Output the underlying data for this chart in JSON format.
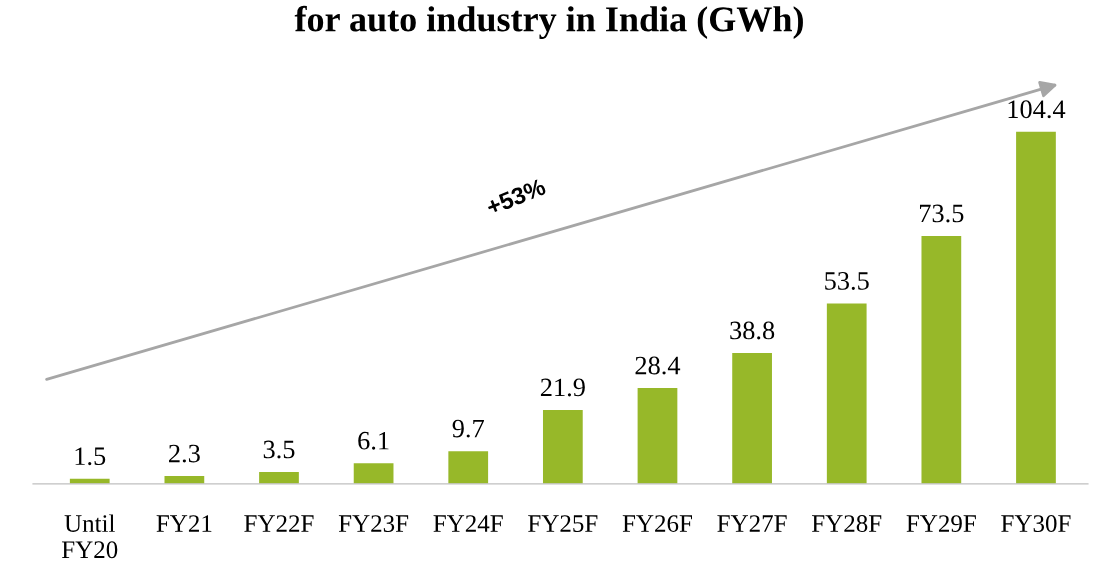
{
  "chart_data": {
    "type": "bar",
    "title": "for auto industry in India (GWh)",
    "categories": [
      "Until\nFY20",
      "FY21",
      "FY22F",
      "FY23F",
      "FY24F",
      "FY25F",
      "FY26F",
      "FY27F",
      "FY28F",
      "FY29F",
      "FY30F"
    ],
    "values": [
      1.5,
      2.3,
      3.5,
      6.1,
      9.7,
      21.9,
      28.4,
      38.8,
      53.5,
      73.5,
      104.4
    ],
    "color": "#97b829",
    "data_labels": true,
    "annotations": [
      "+53%"
    ],
    "grid": false,
    "legend": false
  }
}
